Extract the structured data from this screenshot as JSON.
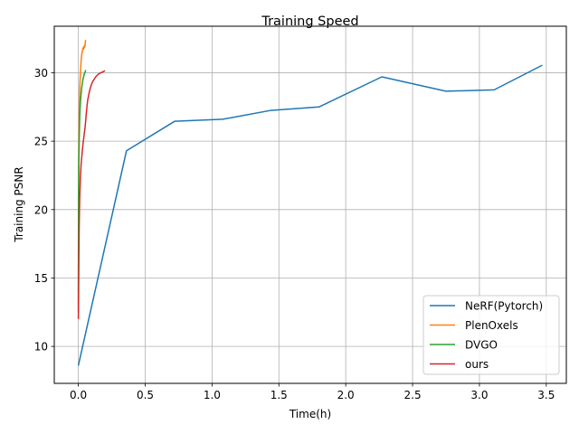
{
  "chart_data": {
    "type": "line",
    "title": "Training Speed",
    "xlabel": "Time(h)",
    "ylabel": "Training PSNR",
    "xlim": [
      -0.18,
      3.65
    ],
    "ylim": [
      7.3,
      33.4
    ],
    "xticks": [
      0.0,
      0.5,
      1.0,
      1.5,
      2.0,
      2.5,
      3.0,
      3.5
    ],
    "xtick_labels": [
      "0.0",
      "0.5",
      "1.0",
      "1.5",
      "2.0",
      "2.5",
      "3.0",
      "3.5"
    ],
    "yticks": [
      10,
      15,
      20,
      25,
      30
    ],
    "ytick_labels": [
      "10",
      "15",
      "20",
      "25",
      "30"
    ],
    "grid": true,
    "legend_position": "lower-right",
    "series": [
      {
        "name": "NeRF(Pytorch)",
        "color": "#1f77b4",
        "x": [
          0.0,
          0.36,
          0.72,
          1.08,
          1.44,
          1.8,
          2.27,
          2.75,
          3.11,
          3.47
        ],
        "y": [
          8.6,
          24.3,
          26.45,
          26.6,
          27.25,
          27.5,
          29.7,
          28.65,
          28.75,
          30.55
        ]
      },
      {
        "name": "PlenOxels",
        "color": "#ff7f0e",
        "x": [
          0.0,
          0.002,
          0.004,
          0.006,
          0.008,
          0.01,
          0.013,
          0.016,
          0.019,
          0.022,
          0.025,
          0.028,
          0.031,
          0.034,
          0.037,
          0.04,
          0.043,
          0.046,
          0.049,
          0.052,
          0.054
        ],
        "y": [
          13.0,
          21.5,
          24.5,
          26.5,
          27.8,
          28.7,
          29.5,
          30.1,
          30.6,
          31.0,
          31.3,
          31.5,
          31.6,
          31.8,
          31.7,
          31.9,
          31.8,
          32.0,
          31.9,
          32.2,
          32.4
        ]
      },
      {
        "name": "DVGO",
        "color": "#2ca02c",
        "x": [
          0.0,
          0.001,
          0.002,
          0.003,
          0.005,
          0.007,
          0.009,
          0.011,
          0.013,
          0.016,
          0.019,
          0.022,
          0.025,
          0.028,
          0.031,
          0.034,
          0.037,
          0.04,
          0.043,
          0.046,
          0.049,
          0.052,
          0.055
        ],
        "y": [
          12.5,
          19.0,
          21.5,
          23.0,
          24.3,
          25.4,
          26.3,
          26.9,
          27.4,
          27.9,
          28.3,
          28.6,
          28.9,
          29.1,
          29.3,
          29.5,
          29.6,
          29.75,
          29.85,
          29.95,
          30.0,
          30.1,
          30.2
        ]
      },
      {
        "name": "ours",
        "color": "#d62728",
        "x": [
          0.0,
          0.002,
          0.004,
          0.006,
          0.008,
          0.01,
          0.013,
          0.016,
          0.02,
          0.025,
          0.03,
          0.035,
          0.04,
          0.045,
          0.05,
          0.055,
          0.06,
          0.065,
          0.07,
          0.08,
          0.09,
          0.1,
          0.11,
          0.12,
          0.13,
          0.14,
          0.15,
          0.16,
          0.17,
          0.18,
          0.19,
          0.2
        ],
        "y": [
          12.0,
          14.0,
          16.5,
          18.5,
          19.8,
          20.8,
          21.7,
          22.5,
          23.2,
          23.8,
          24.3,
          24.8,
          25.2,
          25.6,
          26.0,
          26.5,
          27.1,
          27.6,
          28.0,
          28.5,
          28.9,
          29.2,
          29.4,
          29.55,
          29.7,
          29.8,
          29.9,
          29.95,
          30.0,
          30.05,
          30.1,
          30.15
        ]
      }
    ]
  }
}
